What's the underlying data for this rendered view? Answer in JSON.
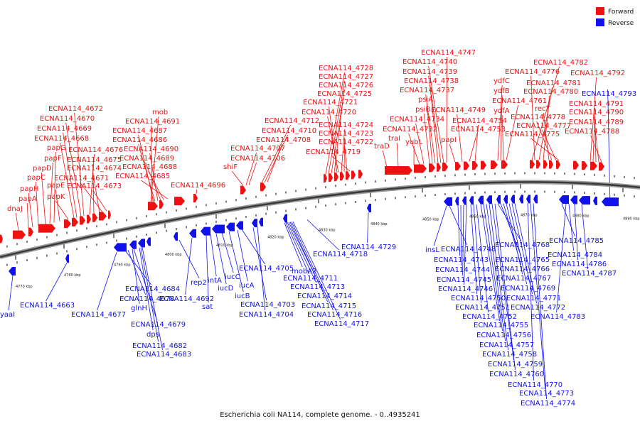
{
  "caption": "Escherichia coli NA114, complete genome. - 0..4935241",
  "legend": {
    "forward": {
      "label": "Forward",
      "color": "#ee1111"
    },
    "reverse": {
      "label": "Reverse",
      "color": "#1111ee"
    }
  },
  "colors": {
    "forward": "#ee1111",
    "reverse": "#1111ee",
    "backbone": "#555555"
  },
  "ticks": [
    "4770 kbp",
    "4780 kbp",
    "4790 kbp",
    "4800 kbp",
    "4810 kbp",
    "4820 kbp",
    "4830 kbp",
    "4840 kbp",
    "4850 kbp",
    "4860 kbp",
    "4870 kbp",
    "4880 kbp",
    "4890 kbp"
  ],
  "forward_genes": [
    "dnaJ",
    "papA",
    "papH",
    "papC",
    "papD",
    "papF",
    "papG",
    "papE",
    "papK",
    "ECNA114_4668",
    "ECNA114_4669",
    "ECNA114_4670",
    "ECNA114_4672",
    "ECNA114_4676",
    "ECNA114_4675",
    "ECNA114_4674",
    "ECNA114_4671",
    "ECNA114_4673",
    "mob",
    "ECNA114_4691",
    "ECNA114_4687",
    "ECNA114_4686",
    "ECNA114_4690",
    "ECNA114_4689",
    "ECNA114_4688",
    "ECNA114_4685",
    "ECNA114_4696",
    "shiF",
    "ECNA114_4707",
    "ECNA114_4706",
    "ECNA114_4712",
    "ECNA114_4710",
    "ECNA114_4708",
    "ECNA114_4728",
    "ECNA114_4727",
    "ECNA114_4726",
    "ECNA114_4725",
    "ECNA114_4721",
    "ECNA114_4720",
    "ECNA114_4724",
    "ECNA114_4723",
    "ECNA114_4722",
    "ECNA114_4719",
    "traD",
    "traI",
    "yubL",
    "ECNA114_4732",
    "ECNA114_4734",
    "psiB",
    "psiA",
    "ECNA114_4737",
    "ECNA114_4738",
    "ECNA114_4739",
    "ECNA114_4740",
    "ECNA114_4747",
    "papI",
    "ECNA114_4749",
    "ECNA114_4753",
    "ECNA114_4754",
    "ydfC",
    "ydfB",
    "ydfA",
    "ECNA114_4761",
    "ECNA114_4782",
    "ECNA114_4776",
    "ECNA114_4781",
    "ECNA114_4780",
    "recT",
    "ECNA114_4778",
    "ECNA114_4777",
    "ECNA114_4775",
    "ECNA114_4792",
    "ECNA114_4791",
    "ECNA114_4790",
    "ECNA114_4789",
    "ECNA114_4788"
  ],
  "reverse_genes": [
    "yaaI",
    "ECNA114_4663",
    "ECNA114_4677",
    "ECNA114_4684",
    "ECNA114_4678",
    "glnH",
    "ECNA114_4679",
    "dps",
    "ECNA114_4682",
    "ECNA114_4683",
    "rep2",
    "ECNA114_4692",
    "sat",
    "intA",
    "iucD",
    "iucC",
    "iucB",
    "iucA",
    "ECNA114_4705",
    "ECNA114_4703",
    "ECNA114_4704",
    "mobA2",
    "ECNA114_4711",
    "ECNA114_4713",
    "ECNA114_4714",
    "ECNA114_4715",
    "ECNA114_4716",
    "ECNA114_4717",
    "ECNA114_4718",
    "ECNA114_4729",
    "insL",
    "ECNA114_4748",
    "ECNA114_4743",
    "ECNA114_4744",
    "ECNA114_4745",
    "ECNA114_4746",
    "ECNA114_4750",
    "ECNA114_4751",
    "ECNA114_4752",
    "ECNA114_4755",
    "ECNA114_4756",
    "ECNA114_4757",
    "ECNA114_4758",
    "ECNA114_4759",
    "ECNA114_4760",
    "ECNA114_4768",
    "ECNA114_4765",
    "ECNA114_4766",
    "ECNA114_4767",
    "ECNA114_4769",
    "ECNA114_4771",
    "ECNA114_4772",
    "ECNA114_4770",
    "ECNA114_4773",
    "ECNA114_4774",
    "ECNA114_4785",
    "ECNA114_4784",
    "ECNA114_4786",
    "ECNA114_4787",
    "ECNA114_4783",
    "ECNA114_4793"
  ]
}
